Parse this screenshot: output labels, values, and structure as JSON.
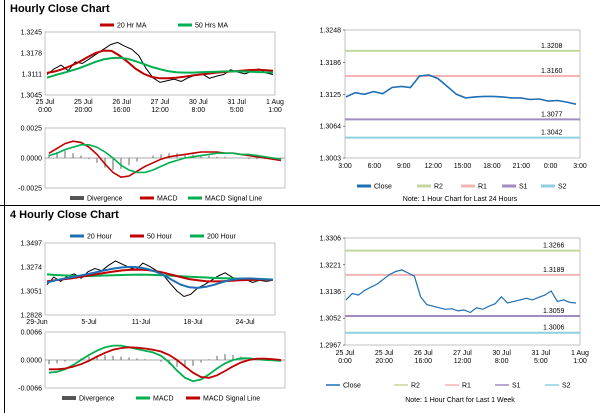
{
  "sections": {
    "hourly_title": "Hourly Close Chart",
    "four_hourly_title": "4 Hourly Close Chart"
  },
  "colors": {
    "close": "#1e6fb5",
    "ma20": "#c00000",
    "ma50": "#00b050",
    "price": "#000000",
    "r2": "#c4d79b",
    "r1": "#f2b4b4",
    "s1": "#a08cc0",
    "s2": "#8ed0e0",
    "hist": "#808080",
    "macd": "#c00000",
    "signal": "#00b050"
  },
  "chart_data": [
    {
      "id": "hourly-price",
      "type": "line",
      "legend": [
        "20 Hr MA",
        "50 Hrs MA"
      ],
      "yticks": [
        "1.3245",
        "1.3178",
        "1.3111",
        "1.3045"
      ],
      "ylim": [
        1.3045,
        1.3245
      ],
      "xticks": [
        "25 Jul\n0:00",
        "25 Jul\n20:00",
        "26 Jul\n16:00",
        "27 Jul\n12:00",
        "30 Jul\n8:00",
        "31 Jul\n5:00",
        "1 Aug\n1:00"
      ],
      "series": [
        {
          "name": "Price",
          "values": [
            1.311,
            1.3128,
            1.314,
            1.3122,
            1.315,
            1.3145,
            1.316,
            1.3175,
            1.319,
            1.3205,
            1.3212,
            1.32,
            1.319,
            1.317,
            1.313,
            1.31,
            1.3085,
            1.309,
            1.3095,
            1.3088,
            1.31,
            1.3108,
            1.3112,
            1.3098,
            1.3105,
            1.311,
            1.3125,
            1.3118,
            1.3112,
            1.312,
            1.3128,
            1.3115,
            1.311
          ]
        },
        {
          "name": "20 Hr MA",
          "values": [
            1.3115,
            1.312,
            1.3128,
            1.3138,
            1.315,
            1.3165,
            1.3178,
            1.3186,
            1.3185,
            1.317,
            1.315,
            1.3128,
            1.3112,
            1.3102,
            1.3098,
            1.3098,
            1.31,
            1.3103,
            1.3107,
            1.311,
            1.3113,
            1.3116,
            1.3118,
            1.312,
            1.3122,
            1.3124,
            1.3125,
            1.3124,
            1.3122
          ]
        },
        {
          "name": "50 Hrs MA",
          "values": [
            1.31,
            1.3108,
            1.3115,
            1.3122,
            1.313,
            1.314,
            1.315,
            1.3158,
            1.3162,
            1.3163,
            1.316,
            1.3152,
            1.3143,
            1.3134,
            1.3127,
            1.3121,
            1.3117,
            1.3116,
            1.3116,
            1.3117,
            1.3118,
            1.3119,
            1.312,
            1.312,
            1.312,
            1.3119,
            1.3118,
            1.3117,
            1.3116
          ]
        }
      ]
    },
    {
      "id": "hourly-macd",
      "type": "line",
      "legend": [
        "Divergence",
        "MACD",
        "MACD Signal Line"
      ],
      "yticks": [
        "0.0025",
        "0.0000",
        "-0.0025"
      ],
      "ylim": [
        -0.0025,
        0.0025
      ],
      "series": [
        {
          "name": "Divergence",
          "values": [
            0.0003,
            0.0005,
            0.0006,
            0.0004,
            0.0002,
            -0.0001,
            -0.0004,
            -0.0008,
            -0.001,
            -0.0009,
            -0.0006,
            -0.0003,
            0.0,
            0.0002,
            0.0003,
            0.0004,
            0.0004,
            0.0003,
            0.0003,
            0.0002,
            0.0002,
            0.0001,
            0.0001,
            0.0,
            0.0,
            -0.0001,
            -0.0001,
            -0.0001,
            0.0,
            -0.0001
          ]
        },
        {
          "name": "MACD",
          "values": [
            0.0004,
            0.0008,
            0.0012,
            0.0014,
            0.0013,
            0.0009,
            0.0003,
            -0.0005,
            -0.0012,
            -0.0016,
            -0.0015,
            -0.0011,
            -0.0007,
            -0.0004,
            -0.0001,
            0.0001,
            0.0002,
            0.0003,
            0.0004,
            0.0005,
            0.0005,
            0.0005,
            0.0004,
            0.0004,
            0.0003,
            0.0002,
            0.0001,
            0.0,
            -0.0001,
            -0.0002
          ]
        },
        {
          "name": "MACD Signal Line",
          "values": [
            0.0002,
            0.0004,
            0.0007,
            0.0009,
            0.0011,
            0.0011,
            0.0009,
            0.0005,
            0.0,
            -0.0006,
            -0.001,
            -0.0012,
            -0.0012,
            -0.001,
            -0.0007,
            -0.0004,
            -0.0002,
            0.0,
            0.0001,
            0.0002,
            0.0003,
            0.0004,
            0.0004,
            0.0004,
            0.0003,
            0.0003,
            0.0002,
            0.0001,
            0.0,
            -0.0001
          ]
        }
      ]
    },
    {
      "id": "hourly-levels",
      "type": "line",
      "yticks": [
        "1.3248",
        "1.3186",
        "1.3125",
        "1.3064",
        "1.3003"
      ],
      "ylim": [
        1.3003,
        1.3248
      ],
      "xticks": [
        "3:00",
        "6:00",
        "9:00",
        "12:00",
        "15:00",
        "18:00",
        "21:00",
        "0:00",
        "3:00"
      ],
      "levels": [
        {
          "name": "R2",
          "value": 1.3208,
          "label": "1.3208"
        },
        {
          "name": "R1",
          "value": 1.316,
          "label": "1.3160"
        },
        {
          "name": "S1",
          "value": 1.3077,
          "label": "1.3077"
        },
        {
          "name": "S2",
          "value": 1.3042,
          "label": "1.3042"
        }
      ],
      "close": [
        1.312,
        1.3128,
        1.3125,
        1.313,
        1.3126,
        1.3138,
        1.314,
        1.3138,
        1.316,
        1.3162,
        1.3155,
        1.314,
        1.3125,
        1.3118,
        1.312,
        1.3121,
        1.3121,
        1.312,
        1.3118,
        1.3118,
        1.3115,
        1.3116,
        1.3112,
        1.3113,
        1.311,
        1.3106
      ],
      "legend": [
        "Close",
        "R2",
        "R1",
        "S1",
        "S2"
      ],
      "note": "Note: 1 Hour Chart for Last 24 Hours"
    },
    {
      "id": "four-hourly-price",
      "type": "line",
      "legend": [
        "20 Hour",
        "50 Hour",
        "200 Hour"
      ],
      "yticks": [
        "1.3497",
        "1.3274",
        "1.3051",
        "1.2828"
      ],
      "ylim": [
        1.2828,
        1.3497
      ],
      "xticks": [
        "29-Jun",
        "5-Jul",
        "11-Jul",
        "18-Jul",
        "24-Jul"
      ],
      "series": [
        {
          "name": "Price",
          "values": [
            1.311,
            1.318,
            1.314,
            1.319,
            1.321,
            1.317,
            1.323,
            1.326,
            1.324,
            1.329,
            1.333,
            1.33,
            1.327,
            1.325,
            1.331,
            1.328,
            1.324,
            1.32,
            1.312,
            1.305,
            1.3,
            1.302,
            1.308,
            1.311,
            1.315,
            1.319,
            1.322,
            1.318,
            1.315,
            1.316,
            1.313,
            1.315,
            1.314,
            1.315
          ]
        },
        {
          "name": "20 Hour",
          "values": [
            1.313,
            1.315,
            1.3165,
            1.318,
            1.3195,
            1.321,
            1.3228,
            1.3245,
            1.326,
            1.327,
            1.3275,
            1.327,
            1.3255,
            1.323,
            1.3195,
            1.315,
            1.311,
            1.3085,
            1.308,
            1.309,
            1.311,
            1.3135,
            1.3155,
            1.3165,
            1.3168,
            1.3165,
            1.316,
            1.3155
          ]
        },
        {
          "name": "50 Hour",
          "values": [
            1.314,
            1.315,
            1.316,
            1.317,
            1.3182,
            1.3195,
            1.3208,
            1.322,
            1.3232,
            1.3242,
            1.3248,
            1.325,
            1.3246,
            1.3236,
            1.322,
            1.32,
            1.318,
            1.3162,
            1.315,
            1.3142,
            1.314,
            1.3142,
            1.3146,
            1.315,
            1.3153,
            1.3155,
            1.3156,
            1.3156
          ]
        },
        {
          "name": "200 Hour",
          "values": [
            1.3205,
            1.32,
            1.3196,
            1.3192,
            1.319,
            1.319,
            1.3192,
            1.3195,
            1.3198,
            1.32,
            1.3202,
            1.3203,
            1.3202,
            1.32,
            1.3196,
            1.3192,
            1.3188,
            1.3184,
            1.318,
            1.3176,
            1.3172,
            1.317,
            1.3168,
            1.3166,
            1.3164,
            1.3162,
            1.316,
            1.3158
          ]
        }
      ]
    },
    {
      "id": "four-hourly-macd",
      "type": "line",
      "legend": [
        "Divergence",
        "MACD",
        "MACD Signal Line"
      ],
      "yticks": [
        "0.0066",
        "0.0000",
        "-0.0066"
      ],
      "ylim": [
        -0.0066,
        0.0066
      ],
      "series": [
        {
          "name": "Divergence",
          "values": [
            -0.001,
            -0.0008,
            -0.0004,
            0.0,
            0.0004,
            0.0008,
            0.001,
            0.0012,
            0.001,
            0.0008,
            0.0006,
            0.0004,
            0.0002,
            0.0,
            -0.0004,
            -0.001,
            -0.0016,
            -0.0018,
            -0.0014,
            -0.0006,
            0.0002,
            0.001,
            0.0014,
            0.0012,
            0.0008,
            0.0004,
            0.0002,
            0.0,
            -0.0002,
            -0.0002
          ]
        },
        {
          "name": "MACD",
          "values": [
            -0.003,
            -0.0028,
            -0.0022,
            -0.0012,
            0.0,
            0.0012,
            0.0022,
            0.003,
            0.0034,
            0.0034,
            0.003,
            0.0026,
            0.0022,
            0.0018,
            0.001,
            -0.0005,
            -0.0025,
            -0.0042,
            -0.005,
            -0.0046,
            -0.0034,
            -0.002,
            -0.0008,
            0.0,
            0.0004,
            0.0004,
            0.0002,
            0.0,
            -0.0001,
            -0.0002
          ]
        },
        {
          "name": "MACD Signal Line",
          "values": [
            -0.0022,
            -0.0022,
            -0.002,
            -0.0016,
            -0.001,
            -0.0002,
            0.0008,
            0.0017,
            0.0024,
            0.0028,
            0.003,
            0.0029,
            0.0027,
            0.0024,
            0.002,
            0.0012,
            0.0,
            -0.0015,
            -0.003,
            -0.004,
            -0.0042,
            -0.0036,
            -0.0026,
            -0.0015,
            -0.0006,
            0.0,
            0.0003,
            0.0003,
            0.0002,
            0.0
          ]
        }
      ]
    },
    {
      "id": "four-hourly-levels",
      "type": "line",
      "yticks": [
        "1.3306",
        "1.3221",
        "1.3136",
        "1.3052",
        "1.2967"
      ],
      "ylim": [
        1.2967,
        1.3306
      ],
      "xticks": [
        "25 Jul\n0:00",
        "25 Jul\n20:00",
        "26 Jul\n16:00",
        "27 Jul\n12:00",
        "30 Jul\n8:00",
        "31 Jul\n5:00",
        "1 Aug\n1:00"
      ],
      "levels": [
        {
          "name": "R2",
          "value": 1.3266,
          "label": "1.3266"
        },
        {
          "name": "R1",
          "value": 1.3189,
          "label": "1.3189"
        },
        {
          "name": "S1",
          "value": 1.3059,
          "label": "1.3059"
        },
        {
          "name": "S2",
          "value": 1.3006,
          "label": "1.3006"
        }
      ],
      "close": [
        1.311,
        1.313,
        1.3125,
        1.314,
        1.315,
        1.316,
        1.3175,
        1.319,
        1.32,
        1.3205,
        1.3195,
        1.3185,
        1.312,
        1.3095,
        1.309,
        1.3085,
        1.308,
        1.3082,
        1.3075,
        1.3078,
        1.307,
        1.3085,
        1.308,
        1.309,
        1.3098,
        1.312,
        1.31,
        1.3105,
        1.311,
        1.3115,
        1.311,
        1.3118,
        1.3125,
        1.3138,
        1.3105,
        1.311,
        1.3102,
        1.31
      ],
      "legend": [
        "Close",
        "R2",
        "R1",
        "S1",
        "S2"
      ],
      "note": "Note: 1 Hour Chart for Last 1 Week"
    }
  ]
}
